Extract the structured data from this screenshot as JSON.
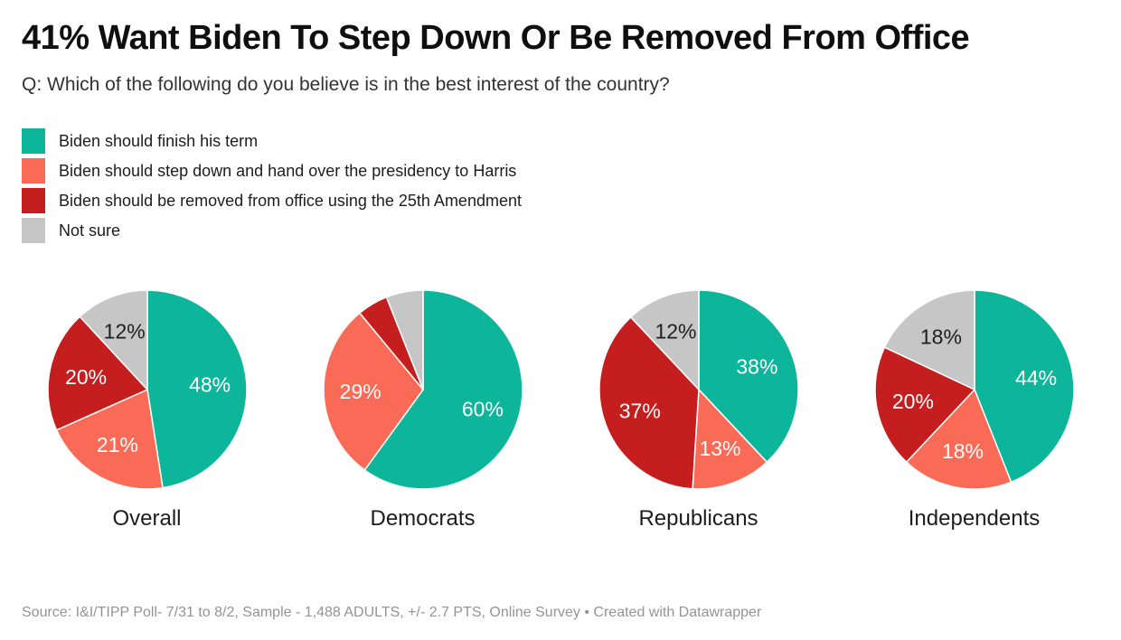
{
  "header": {
    "title": "41% Want Biden To Step Down Or Be Removed From Office",
    "subtitle": "Q: Which of the following do you believe is in the best interest of the country?"
  },
  "legend": {
    "items": [
      {
        "id": "finish-term",
        "label": "Biden should finish his term",
        "color": "#0DB69B"
      },
      {
        "id": "step-down",
        "label": "Biden should step down and hand over the presidency to Harris",
        "color": "#FA6B57"
      },
      {
        "id": "removed-25th",
        "label": "Biden should be removed from office using the 25th Amendment",
        "color": "#C51E1F"
      },
      {
        "id": "not-sure",
        "label": "Not sure",
        "color": "#C6C6C6"
      }
    ]
  },
  "chart_data": {
    "type": "pie",
    "title": "41% Want Biden To Step Down Or Be Removed From Office",
    "categories": [
      "Biden should finish his term",
      "Biden should step down and hand over the presidency to Harris",
      "Biden should be removed from office using the 25th Amendment",
      "Not sure"
    ],
    "category_ids": [
      "finish-term",
      "step-down",
      "removed-25th",
      "not-sure"
    ],
    "colors": [
      "#0DB69B",
      "#FA6B57",
      "#C51E1F",
      "#C6C6C6"
    ],
    "label_text_colors": [
      "#ffffff",
      "#ffffff",
      "#ffffff",
      "#1d1d1d"
    ],
    "start_angle": "12-oclock-clockwise",
    "pies": [
      {
        "group": "Overall",
        "values": [
          48,
          21,
          20,
          12
        ],
        "slice_labels": [
          "48%",
          "21%",
          "20%",
          "12%"
        ]
      },
      {
        "group": "Democrats",
        "values": [
          60,
          29,
          5,
          6
        ],
        "slice_labels": [
          "60%",
          "29%",
          "",
          ""
        ]
      },
      {
        "group": "Republicans",
        "values": [
          38,
          13,
          37,
          12
        ],
        "slice_labels": [
          "38%",
          "13%",
          "37%",
          "12%"
        ]
      },
      {
        "group": "Independents",
        "values": [
          44,
          18,
          20,
          18
        ],
        "slice_labels": [
          "44%",
          "18%",
          "20%",
          "18%"
        ]
      }
    ]
  },
  "footer": {
    "source": "Source: I&I/TIPP Poll- 7/31 to 8/2, Sample - 1,488 ADULTS, +/- 2.7 PTS, Online Survey • Created with Datawrapper"
  }
}
